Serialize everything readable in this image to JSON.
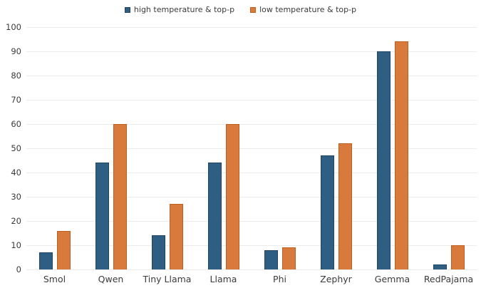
{
  "chart_data": {
    "type": "bar",
    "title": "",
    "xlabel": "",
    "ylabel": "",
    "categories": [
      "Smol",
      "Qwen",
      "Tiny Llama",
      "Llama",
      "Phi",
      "Zephyr",
      "Gemma",
      "RedPajama"
    ],
    "series": [
      {
        "name": "high temperature & top-p",
        "values": [
          7,
          44,
          14,
          44,
          8,
          47,
          90,
          2
        ],
        "color": "#2e5f82",
        "border_color": "#1f4563"
      },
      {
        "name": "low temperature & top-p",
        "values": [
          16,
          60,
          27,
          60,
          9,
          52,
          94,
          10
        ],
        "color": "#d97a3d",
        "border_color": "#bf5f1f"
      }
    ],
    "ylim": [
      0,
      100
    ],
    "yticks": [
      0,
      10,
      20,
      30,
      40,
      50,
      60,
      70,
      80,
      90,
      100
    ],
    "grid": true,
    "gridline_color": "#ebebeb",
    "legend_position": "top-center",
    "text_color": "#3b3b3b",
    "background_color": "#ffffff"
  }
}
